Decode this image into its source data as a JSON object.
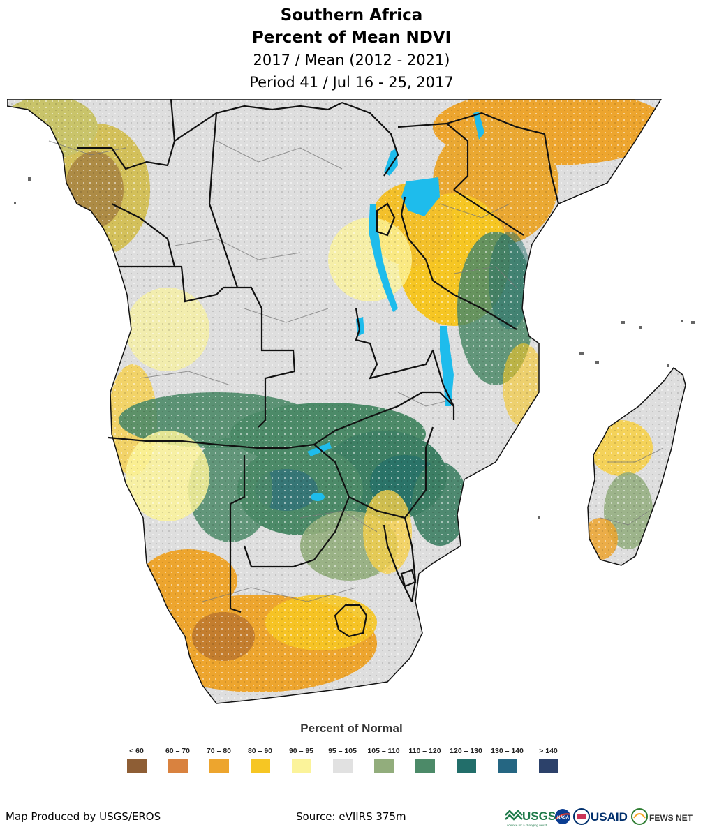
{
  "title": {
    "line1": "Southern Africa",
    "line2": "Percent of Mean NDVI",
    "line3": "2017 / Mean (2012 - 2021)",
    "line4": "Period 41 / Jul 16 - 25, 2017"
  },
  "legend": {
    "title": "Percent of Normal",
    "items": [
      {
        "label": "< 60",
        "color": "#8e5e35"
      },
      {
        "label": "60 – 70",
        "color": "#d9823f"
      },
      {
        "label": "70 – 80",
        "color": "#eda52e"
      },
      {
        "label": "80 – 90",
        "color": "#f6c623"
      },
      {
        "label": "90 – 95",
        "color": "#fbf39a"
      },
      {
        "label": "95 – 105",
        "color": "#e1e1e1"
      },
      {
        "label": "105 – 110",
        "color": "#92ad7c"
      },
      {
        "label": "110 – 120",
        "color": "#4c8a68"
      },
      {
        "label": "120 – 130",
        "color": "#226e6a"
      },
      {
        "label": "130 – 140",
        "color": "#256682"
      },
      {
        "label": "> 140",
        "color": "#2c416a"
      }
    ]
  },
  "footer": {
    "produced_by": "Map Produced by USGS/EROS",
    "source": "Source: eVIIRS 375m"
  },
  "logos": {
    "usgs": "USGS",
    "usgs_tagline": "science for a changing world",
    "nasa": "NASA",
    "usaid": "USAID",
    "fewsnet": "FEWS NET"
  },
  "map": {
    "water_color": "#1ebcec",
    "border_color": "#111111"
  }
}
